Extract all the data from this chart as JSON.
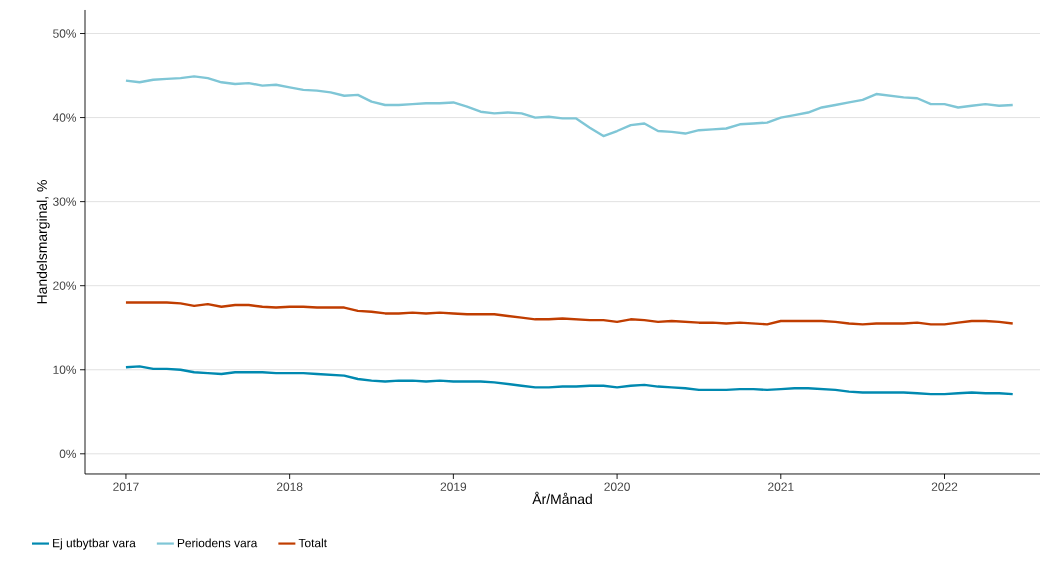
{
  "chart_data": {
    "type": "line",
    "xlabel": "År/Månad",
    "ylabel": "Handelsmarginal, %",
    "x": [
      "2017-01",
      "2017-02",
      "2017-03",
      "2017-04",
      "2017-05",
      "2017-06",
      "2017-07",
      "2017-08",
      "2017-09",
      "2017-10",
      "2017-11",
      "2017-12",
      "2018-01",
      "2018-02",
      "2018-03",
      "2018-04",
      "2018-05",
      "2018-06",
      "2018-07",
      "2018-08",
      "2018-09",
      "2018-10",
      "2018-11",
      "2018-12",
      "2019-01",
      "2019-02",
      "2019-03",
      "2019-04",
      "2019-05",
      "2019-06",
      "2019-07",
      "2019-08",
      "2019-09",
      "2019-10",
      "2019-11",
      "2019-12",
      "2020-01",
      "2020-02",
      "2020-03",
      "2020-04",
      "2020-05",
      "2020-06",
      "2020-07",
      "2020-08",
      "2020-09",
      "2020-10",
      "2020-11",
      "2020-12",
      "2021-01",
      "2021-02",
      "2021-03",
      "2021-04",
      "2021-05",
      "2021-06",
      "2021-07",
      "2021-08",
      "2021-09",
      "2021-10",
      "2021-11",
      "2021-12",
      "2022-01",
      "2022-02",
      "2022-03",
      "2022-04",
      "2022-05",
      "2022-06"
    ],
    "series": [
      {
        "name": "Ej utbytbar vara",
        "color": "#0089b0",
        "values": [
          10.3,
          10.4,
          10.1,
          10.1,
          10.0,
          9.7,
          9.6,
          9.5,
          9.7,
          9.7,
          9.7,
          9.6,
          9.6,
          9.6,
          9.5,
          9.4,
          9.3,
          8.9,
          8.7,
          8.6,
          8.7,
          8.7,
          8.6,
          8.7,
          8.6,
          8.6,
          8.6,
          8.5,
          8.3,
          8.1,
          7.9,
          7.9,
          8.0,
          8.0,
          8.1,
          8.1,
          7.9,
          8.1,
          8.2,
          8.0,
          7.9,
          7.8,
          7.6,
          7.6,
          7.6,
          7.7,
          7.7,
          7.6,
          7.7,
          7.8,
          7.8,
          7.7,
          7.6,
          7.4,
          7.3,
          7.3,
          7.3,
          7.3,
          7.2,
          7.1,
          7.1,
          7.2,
          7.3,
          7.2,
          7.2,
          7.1
        ]
      },
      {
        "name": "Periodens vara",
        "color": "#7fc6d6",
        "values": [
          44.4,
          44.2,
          44.5,
          44.6,
          44.7,
          44.9,
          44.7,
          44.2,
          44.0,
          44.1,
          43.8,
          43.9,
          43.6,
          43.3,
          43.2,
          43.0,
          42.6,
          42.7,
          41.9,
          41.5,
          41.5,
          41.6,
          41.7,
          41.7,
          41.8,
          41.3,
          40.7,
          40.5,
          40.6,
          40.5,
          40.0,
          40.1,
          39.9,
          39.9,
          38.8,
          37.8,
          38.4,
          39.1,
          39.3,
          38.4,
          38.3,
          38.1,
          38.5,
          38.6,
          38.7,
          39.2,
          39.3,
          39.4,
          40.0,
          40.3,
          40.6,
          41.2,
          41.5,
          41.8,
          42.1,
          42.8,
          42.6,
          42.4,
          42.3,
          41.6,
          41.6,
          41.2,
          41.4,
          41.6,
          41.4,
          41.5
        ]
      },
      {
        "name": "Totalt",
        "color": "#c03d00",
        "values": [
          18.0,
          18.0,
          18.0,
          18.0,
          17.9,
          17.6,
          17.8,
          17.5,
          17.7,
          17.7,
          17.5,
          17.4,
          17.5,
          17.5,
          17.4,
          17.4,
          17.4,
          17.0,
          16.9,
          16.7,
          16.7,
          16.8,
          16.7,
          16.8,
          16.7,
          16.6,
          16.6,
          16.6,
          16.4,
          16.2,
          16.0,
          16.0,
          16.1,
          16.0,
          15.9,
          15.9,
          15.7,
          16.0,
          15.9,
          15.7,
          15.8,
          15.7,
          15.6,
          15.6,
          15.5,
          15.6,
          15.5,
          15.4,
          15.8,
          15.8,
          15.8,
          15.8,
          15.7,
          15.5,
          15.4,
          15.5,
          15.5,
          15.5,
          15.6,
          15.4,
          15.4,
          15.6,
          15.8,
          15.8,
          15.7,
          15.5
        ]
      }
    ],
    "xlim": [
      "2016-10",
      "2022-08"
    ],
    "xticks": [
      "2017",
      "2018",
      "2019",
      "2020",
      "2021",
      "2022"
    ],
    "ylim": [
      -2.4,
      52.8
    ],
    "yticks": [
      {
        "value": 0,
        "label": "0%"
      },
      {
        "value": 10,
        "label": "10%"
      },
      {
        "value": 20,
        "label": "20%"
      },
      {
        "value": 30,
        "label": "30%"
      },
      {
        "value": 40,
        "label": "40%"
      },
      {
        "value": 50,
        "label": "50%"
      }
    ],
    "grid": "y",
    "legend": "bottom",
    "marker": "none",
    "line_style": "solid"
  }
}
